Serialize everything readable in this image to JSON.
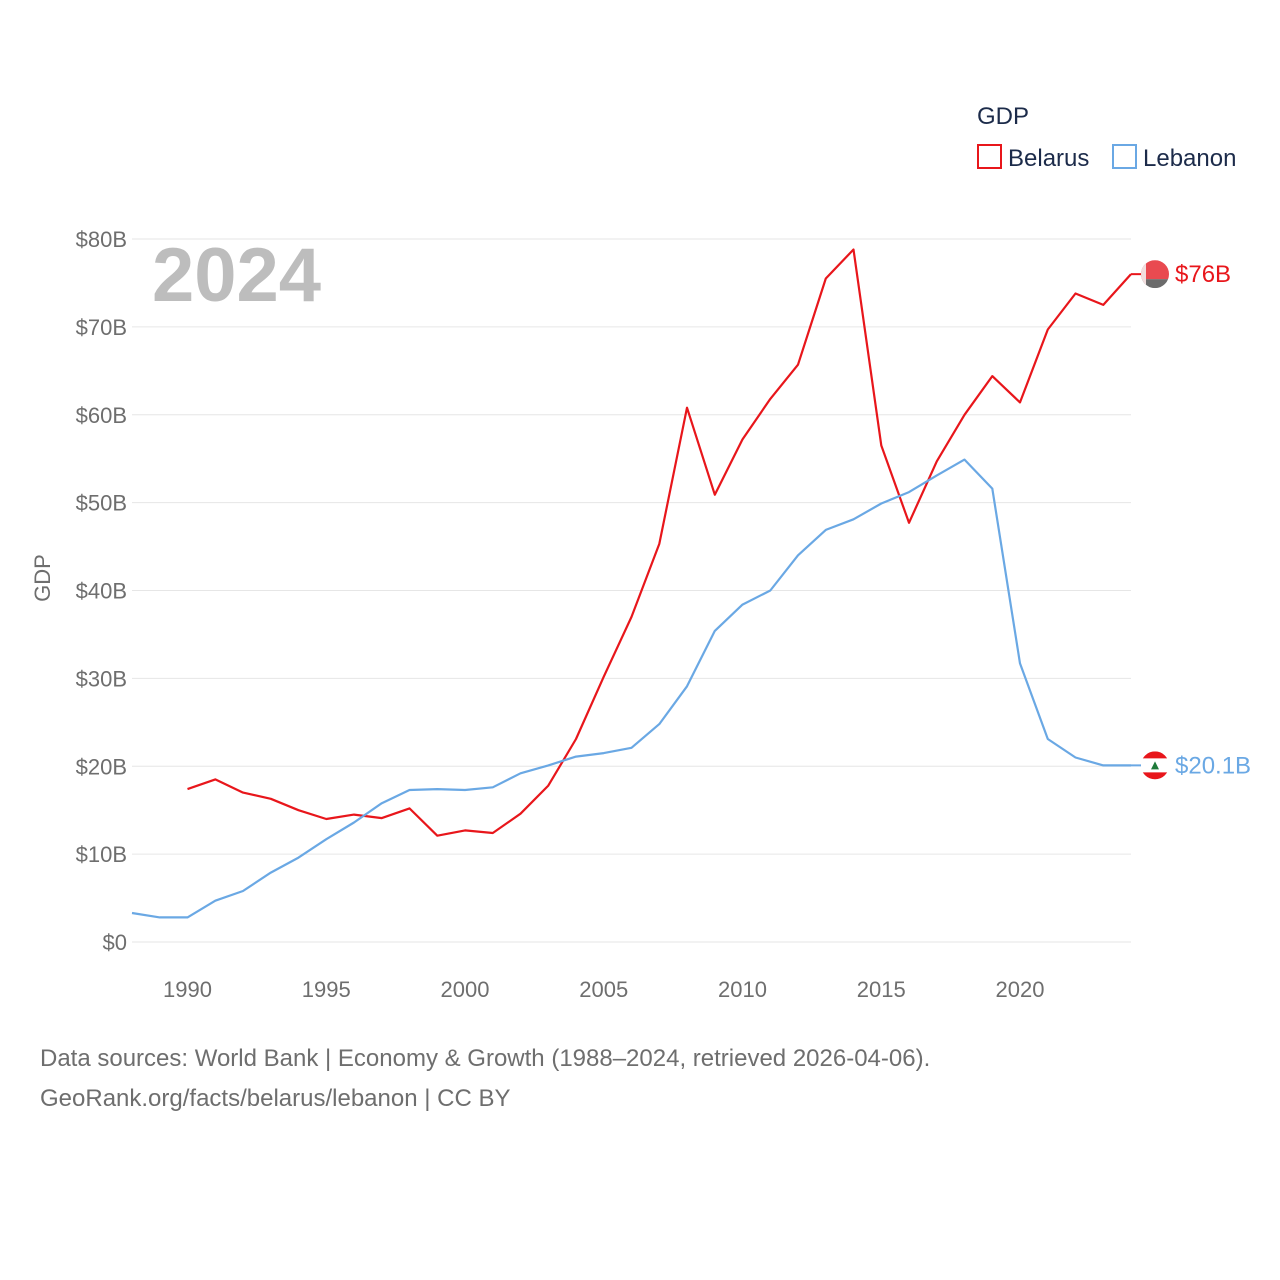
{
  "chart_data": {
    "type": "line",
    "year_label": "2024",
    "ylabel": "GDP",
    "ylim": [
      0,
      80
    ],
    "xlim": [
      1988,
      2024
    ],
    "y_ticks": [
      0,
      10,
      20,
      30,
      40,
      50,
      60,
      70,
      80
    ],
    "y_tick_labels": [
      "$0",
      "$10B",
      "$20B",
      "$30B",
      "$40B",
      "$50B",
      "$60B",
      "$70B",
      "$80B"
    ],
    "x_ticks": [
      1990,
      1995,
      2000,
      2005,
      2010,
      2015,
      2020
    ],
    "x_tick_labels": [
      "1990",
      "1995",
      "2000",
      "2005",
      "2010",
      "2015",
      "2020"
    ],
    "legend": {
      "title": "GDP",
      "position": "top-right"
    },
    "series": [
      {
        "name": "Belarus",
        "color": "#e8161b",
        "end_label": "$76B",
        "x": [
          1990,
          1991,
          1992,
          1993,
          1994,
          1995,
          1996,
          1997,
          1998,
          1999,
          2000,
          2001,
          2002,
          2003,
          2004,
          2005,
          2006,
          2007,
          2008,
          2009,
          2010,
          2011,
          2012,
          2013,
          2014,
          2015,
          2016,
          2017,
          2018,
          2019,
          2020,
          2021,
          2022,
          2023,
          2024
        ],
        "values": [
          17.4,
          18.5,
          17.0,
          16.3,
          15.0,
          14.0,
          14.5,
          14.1,
          15.2,
          12.1,
          12.7,
          12.4,
          14.6,
          17.8,
          23.1,
          30.2,
          37.0,
          45.3,
          60.8,
          50.9,
          57.2,
          61.8,
          65.7,
          75.5,
          78.8,
          56.5,
          47.7,
          54.7,
          60.0,
          64.4,
          61.4,
          69.7,
          73.8,
          72.5,
          76.0
        ]
      },
      {
        "name": "Lebanon",
        "color": "#6aa8e4",
        "end_label": "$20.1B",
        "x": [
          1988,
          1989,
          1990,
          1991,
          1992,
          1993,
          1994,
          1995,
          1996,
          1997,
          1998,
          1999,
          2000,
          2001,
          2002,
          2003,
          2004,
          2005,
          2006,
          2007,
          2008,
          2009,
          2010,
          2011,
          2012,
          2013,
          2014,
          2015,
          2016,
          2017,
          2018,
          2019,
          2020,
          2021,
          2022,
          2023,
          2024
        ],
        "values": [
          3.3,
          2.8,
          2.8,
          4.7,
          5.8,
          7.9,
          9.6,
          11.7,
          13.6,
          15.8,
          17.3,
          17.4,
          17.3,
          17.6,
          19.2,
          20.1,
          21.1,
          21.5,
          22.1,
          24.8,
          29.1,
          35.4,
          38.4,
          40.0,
          44.0,
          46.9,
          48.1,
          49.9,
          51.2,
          53.1,
          54.9,
          51.6,
          31.7,
          23.1,
          21.0,
          20.1,
          20.1
        ]
      }
    ]
  },
  "footer": {
    "line1": "Data sources: World Bank | Economy & Growth (1988–2024, retrieved 2026-04-06).",
    "line2": "GeoRank.org/facts/belarus/lebanon | CC BY"
  }
}
